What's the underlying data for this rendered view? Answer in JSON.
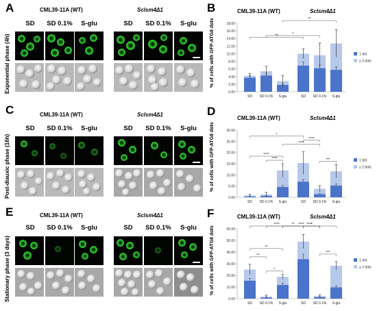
{
  "panels": {
    "A": "A",
    "B": "B",
    "C": "C",
    "D": "D",
    "E": "E",
    "F": "F"
  },
  "strains": {
    "wt": "CML39-11A (WT)",
    "mut": "Sclsm4Δ1"
  },
  "conditions": [
    "SD",
    "SD 0.1%",
    "S-glu"
  ],
  "phases": {
    "exp": "Exponential phase (4h)",
    "post": "Post-diauxic phase (16h)",
    "stat": "Stationary phase (3 days)"
  },
  "ylabel": "% of cells with GFP-ATG8 dots",
  "legend": {
    "one": "1 dot",
    "two": "≥ 2 dots"
  },
  "colors": {
    "one_dot": "#4a74c9",
    "two_dots": "#b7c8ea",
    "fluor": "#2fd12f"
  },
  "chart_data": [
    {
      "panel": "B",
      "type": "bar",
      "categories": [
        "SD",
        "SD 0.1%",
        "S-glu",
        "SD",
        "SD 0.1%",
        "S-glu"
      ],
      "ylim": [
        0,
        18
      ],
      "yticks": [
        "0.00",
        "2.00",
        "4.00",
        "6.00",
        "8.00",
        "10.00",
        "12.00",
        "14.00",
        "16.00",
        "18.00"
      ],
      "series": [
        {
          "name": "1 dot",
          "values": [
            3.7,
            4.3,
            1.8,
            6.9,
            6.2,
            5.8
          ]
        },
        {
          "name": "≥ 2 dots",
          "values": [
            0.5,
            1.1,
            1.0,
            3.1,
            3.4,
            6.9
          ]
        }
      ],
      "errors": [
        0.6,
        1.3,
        1.5,
        1.3,
        3.2,
        3.6
      ],
      "significance": [
        "**",
        "*",
        "**"
      ]
    },
    {
      "panel": "D",
      "type": "bar",
      "categories": [
        "SD",
        "SD 0.1%",
        "S-glu",
        "SD",
        "SD 0.1%",
        "S-glu"
      ],
      "ylim": [
        0,
        30
      ],
      "yticks": [
        "0.00",
        "5.00",
        "10.00",
        "15.00",
        "20.00",
        "25.00",
        "30.00"
      ],
      "series": [
        {
          "name": "1 dot",
          "values": [
            0.4,
            0.6,
            4.6,
            7.0,
            1.4,
            5.3
          ]
        },
        {
          "name": "≥ 2 dots",
          "values": [
            0.4,
            0.7,
            7.4,
            8.3,
            2.4,
            6.3
          ]
        }
      ],
      "errors": [
        0.6,
        0.9,
        3.0,
        5.0,
        1.4,
        3.0
      ],
      "significance": [
        "****",
        "*",
        "****",
        "****",
        "****",
        "***"
      ]
    },
    {
      "panel": "F",
      "type": "bar",
      "categories": [
        "SD",
        "SD 0.1%",
        "S-glu",
        "SD",
        "SD 0.1%",
        "S-glu"
      ],
      "ylim": [
        0,
        60
      ],
      "yticks": [
        "0.00",
        "10.00",
        "20.00",
        "30.00",
        "40.00",
        "50.00",
        "60.00"
      ],
      "series": [
        {
          "name": "1 dot",
          "values": [
            15.5,
            1.0,
            11.8,
            34.0,
            1.2,
            9.8
          ]
        },
        {
          "name": "≥ 2 dots",
          "values": [
            9.5,
            0.8,
            7.0,
            15.0,
            1.2,
            18.5
          ]
        }
      ],
      "errors": [
        4.5,
        1.2,
        2.0,
        6.0,
        1.0,
        3.5
      ],
      "significance": [
        "**",
        "**",
        "*",
        "****",
        "**",
        "****",
        "*",
        "****",
        "***"
      ]
    }
  ]
}
